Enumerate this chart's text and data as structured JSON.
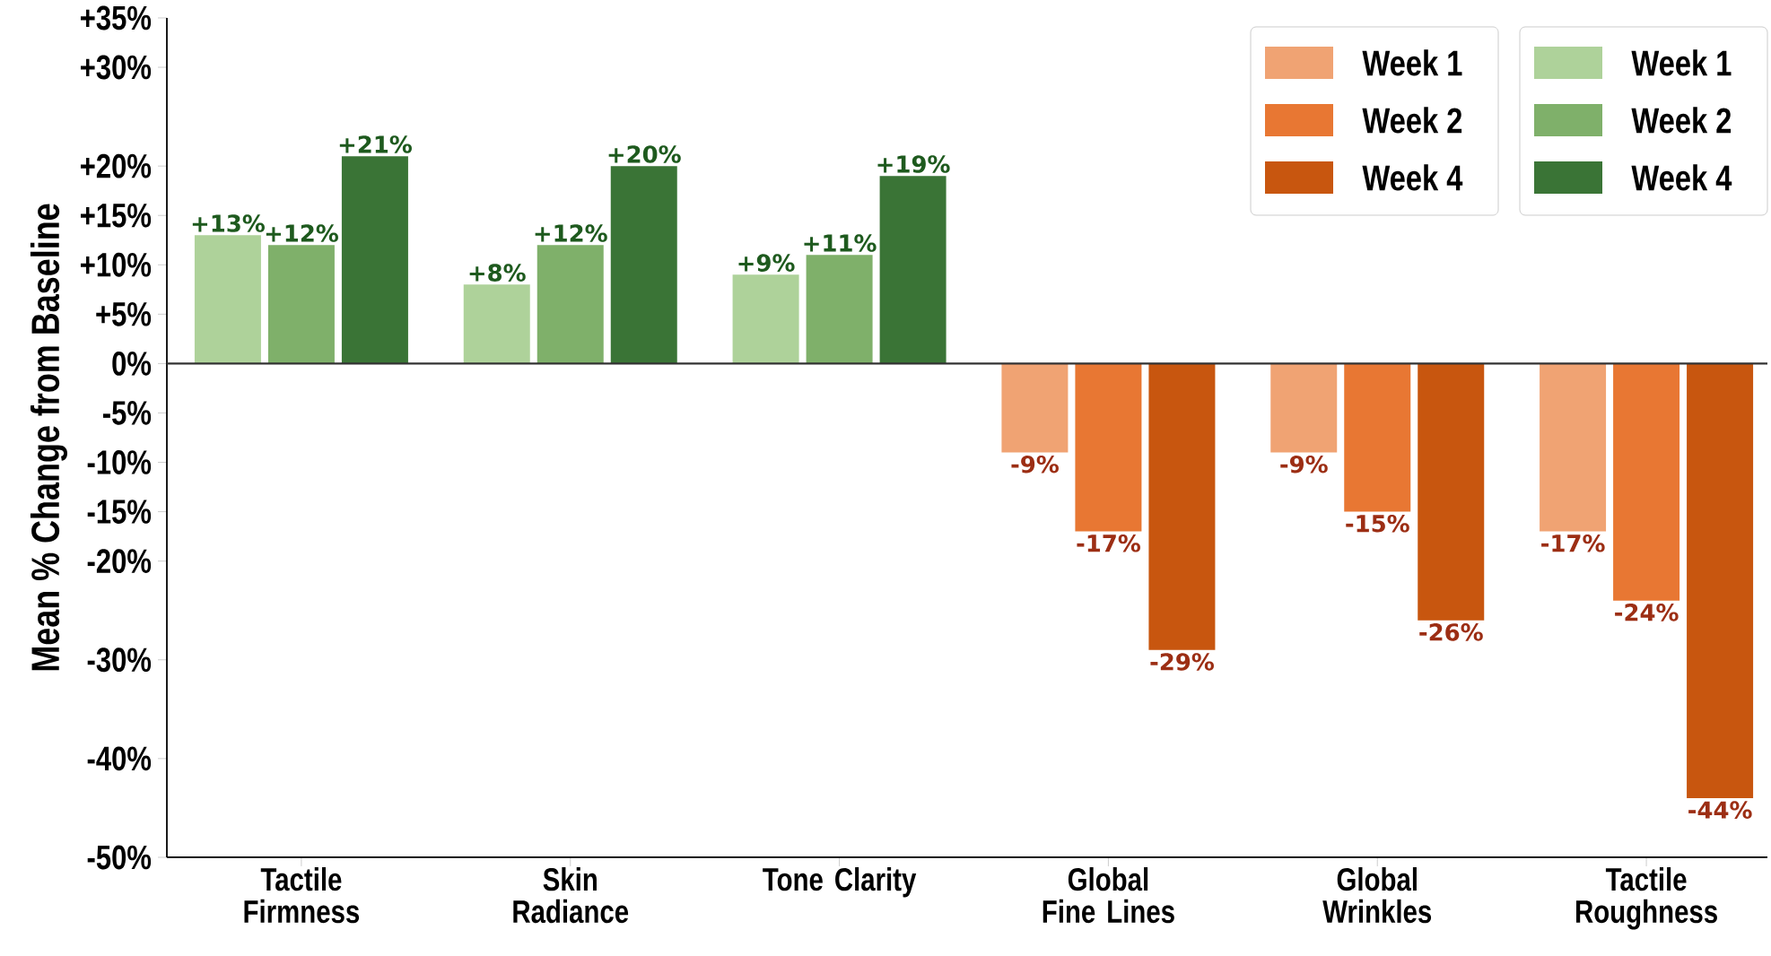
{
  "chart_data": {
    "type": "bar",
    "ylabel": "Mean % Change from Baseline",
    "categories": [
      "Tactile Firmness",
      "Skin Radiance",
      "Tone Clarity",
      "Global Fine Lines",
      "Global Wrinkles",
      "Tactile Roughness"
    ],
    "series": [
      {
        "name": "Week 1",
        "color": "#aed29a",
        "values": [
          13,
          8,
          9,
          null,
          null,
          null
        ],
        "value_labels": [
          "+13%",
          "+8%",
          "+9%",
          null,
          null,
          null
        ]
      },
      {
        "name": "Week 2",
        "color": "#7fb06a",
        "values": [
          12,
          12,
          11,
          null,
          null,
          null
        ],
        "value_labels": [
          "+12%",
          "+12%",
          "+11%",
          null,
          null,
          null
        ]
      },
      {
        "name": "Week 4",
        "color": "#3a7436",
        "values": [
          21,
          20,
          19,
          null,
          null,
          null
        ],
        "value_labels": [
          "+21%",
          "+20%",
          "+19%",
          null,
          null,
          null
        ]
      },
      {
        "name": "Week 1",
        "color": "#f0a373",
        "values": [
          null,
          null,
          null,
          -9,
          -9,
          -17
        ],
        "value_labels": [
          null,
          null,
          null,
          "-9%",
          "-9%",
          "-17%"
        ]
      },
      {
        "name": "Week 2",
        "color": "#e87733",
        "values": [
          null,
          null,
          null,
          -17,
          -15,
          -24
        ],
        "value_labels": [
          null,
          null,
          null,
          "-17%",
          "-15%",
          "-24%"
        ]
      },
      {
        "name": "Week 4",
        "color": "#c8560f",
        "values": [
          null,
          null,
          null,
          -29,
          -26,
          -44
        ],
        "value_labels": [
          null,
          null,
          null,
          "-29%",
          "-26%",
          "-44%"
        ]
      }
    ],
    "ylim": [
      -50,
      35
    ],
    "yticks": [
      {
        "value": 35,
        "label": "+35%"
      },
      {
        "value": 30,
        "label": "+30%"
      },
      {
        "value": 20,
        "label": "+20%"
      },
      {
        "value": 15,
        "label": "+15%"
      },
      {
        "value": 10,
        "label": "+10%"
      },
      {
        "value": 5,
        "label": "+5%"
      },
      {
        "value": 0,
        "label": "0%"
      },
      {
        "value": -5,
        "label": "-5%"
      },
      {
        "value": -10,
        "label": "-10%"
      },
      {
        "value": -15,
        "label": "-15%"
      },
      {
        "value": -20,
        "label": "-20%"
      },
      {
        "value": -30,
        "label": "-30%"
      },
      {
        "value": -40,
        "label": "-40%"
      },
      {
        "value": -50,
        "label": "-50%"
      }
    ],
    "ref_lines": [
      {
        "axis": "y",
        "value": 0,
        "color": "#333333"
      }
    ],
    "grid": false,
    "legend": "top right"
  }
}
